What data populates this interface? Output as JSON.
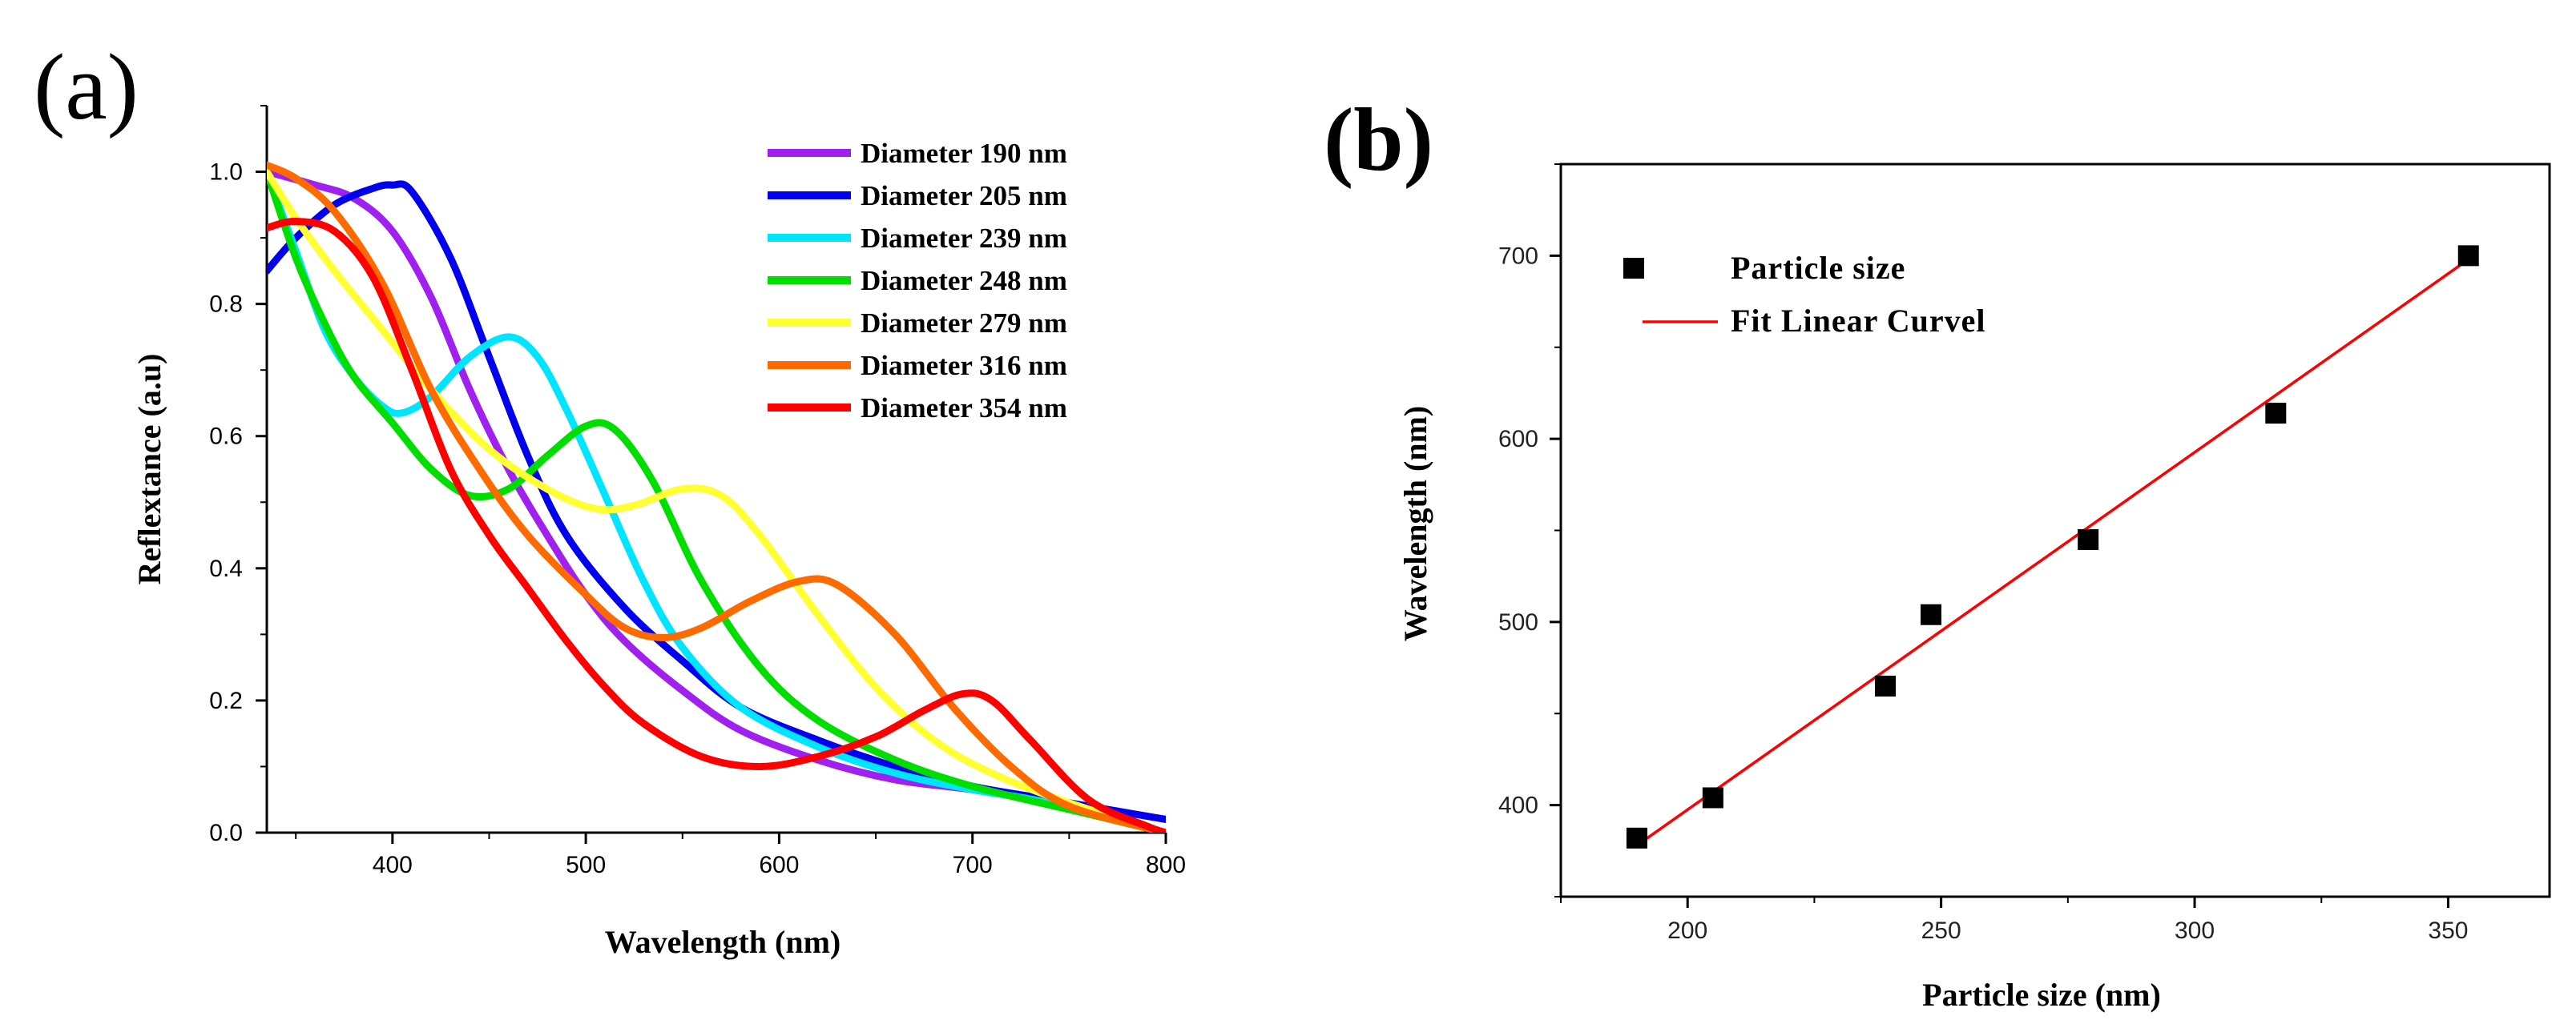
{
  "chart_data": [
    {
      "panel_label": "(a)",
      "type": "line",
      "xlabel": "Wavelength (nm)",
      "ylabel": "Reflextance (a.u)",
      "xlim": [
        335,
        800
      ],
      "ylim": [
        0.0,
        1.1
      ],
      "xticks": [
        400,
        500,
        600,
        700,
        800
      ],
      "xtick_labels": [
        "400",
        "500",
        "600",
        "700",
        "800"
      ],
      "yticks": [
        0.0,
        0.2,
        0.4,
        0.6,
        0.8,
        1.0
      ],
      "ytick_labels": [
        "0.0",
        "0.2",
        "0.4",
        "0.6",
        "0.8",
        "1.0"
      ],
      "legend_position": "top-right",
      "series": [
        {
          "name": "Diameter 190 nm",
          "color": "#a020f0",
          "points": [
            [
              335,
              1.0
            ],
            [
              360,
              0.98
            ],
            [
              380,
              0.96
            ],
            [
              400,
              0.91
            ],
            [
              420,
              0.81
            ],
            [
              440,
              0.67
            ],
            [
              460,
              0.55
            ],
            [
              480,
              0.45
            ],
            [
              500,
              0.36
            ],
            [
              520,
              0.29
            ],
            [
              550,
              0.215
            ],
            [
              580,
              0.155
            ],
            [
              620,
              0.11
            ],
            [
              660,
              0.08
            ],
            [
              700,
              0.065
            ],
            [
              740,
              0.045
            ],
            [
              800,
              0.0
            ]
          ]
        },
        {
          "name": "Diameter 205 nm",
          "color": "#0000ee",
          "points": [
            [
              335,
              0.85
            ],
            [
              350,
              0.9
            ],
            [
              370,
              0.95
            ],
            [
              390,
              0.975
            ],
            [
              400,
              0.98
            ],
            [
              410,
              0.97
            ],
            [
              430,
              0.87
            ],
            [
              450,
              0.72
            ],
            [
              470,
              0.57
            ],
            [
              490,
              0.45
            ],
            [
              520,
              0.34
            ],
            [
              550,
              0.26
            ],
            [
              580,
              0.19
            ],
            [
              620,
              0.14
            ],
            [
              660,
              0.1
            ],
            [
              700,
              0.07
            ],
            [
              740,
              0.05
            ],
            [
              800,
              0.02
            ]
          ]
        },
        {
          "name": "Diameter 239 nm",
          "color": "#00e5ff",
          "points": [
            [
              335,
              1.0
            ],
            [
              350,
              0.88
            ],
            [
              365,
              0.76
            ],
            [
              380,
              0.69
            ],
            [
              395,
              0.645
            ],
            [
              405,
              0.635
            ],
            [
              420,
              0.66
            ],
            [
              440,
              0.72
            ],
            [
              460,
              0.75
            ],
            [
              475,
              0.72
            ],
            [
              490,
              0.64
            ],
            [
              510,
              0.51
            ],
            [
              530,
              0.38
            ],
            [
              550,
              0.28
            ],
            [
              580,
              0.19
            ],
            [
              620,
              0.13
            ],
            [
              660,
              0.09
            ],
            [
              700,
              0.065
            ],
            [
              740,
              0.045
            ],
            [
              800,
              0.0
            ]
          ]
        },
        {
          "name": "Diameter 248 nm",
          "color": "#00dd00",
          "points": [
            [
              335,
              1.0
            ],
            [
              350,
              0.87
            ],
            [
              365,
              0.77
            ],
            [
              380,
              0.69
            ],
            [
              400,
              0.62
            ],
            [
              420,
              0.55
            ],
            [
              440,
              0.51
            ],
            [
              460,
              0.52
            ],
            [
              480,
              0.57
            ],
            [
              500,
              0.615
            ],
            [
              515,
              0.61
            ],
            [
              535,
              0.53
            ],
            [
              560,
              0.38
            ],
            [
              590,
              0.25
            ],
            [
              620,
              0.17
            ],
            [
              660,
              0.11
            ],
            [
              700,
              0.07
            ],
            [
              750,
              0.035
            ],
            [
              800,
              0.0
            ]
          ]
        },
        {
          "name": "Diameter 279 nm",
          "color": "#ffff33",
          "points": [
            [
              335,
              1.0
            ],
            [
              350,
              0.93
            ],
            [
              370,
              0.85
            ],
            [
              395,
              0.76
            ],
            [
              420,
              0.67
            ],
            [
              450,
              0.58
            ],
            [
              480,
              0.52
            ],
            [
              505,
              0.49
            ],
            [
              525,
              0.495
            ],
            [
              550,
              0.52
            ],
            [
              570,
              0.51
            ],
            [
              590,
              0.45
            ],
            [
              620,
              0.33
            ],
            [
              650,
              0.22
            ],
            [
              680,
              0.14
            ],
            [
              710,
              0.09
            ],
            [
              750,
              0.045
            ],
            [
              800,
              0.0
            ]
          ]
        },
        {
          "name": "Diameter 316 nm",
          "color": "#ff6a00",
          "points": [
            [
              335,
              1.01
            ],
            [
              350,
              0.99
            ],
            [
              370,
              0.94
            ],
            [
              395,
              0.83
            ],
            [
              420,
              0.67
            ],
            [
              445,
              0.55
            ],
            [
              470,
              0.45
            ],
            [
              500,
              0.36
            ],
            [
              520,
              0.31
            ],
            [
              540,
              0.295
            ],
            [
              560,
              0.31
            ],
            [
              585,
              0.35
            ],
            [
              610,
              0.38
            ],
            [
              630,
              0.375
            ],
            [
              660,
              0.3
            ],
            [
              690,
              0.19
            ],
            [
              720,
              0.1
            ],
            [
              750,
              0.04
            ],
            [
              800,
              0.0
            ]
          ]
        },
        {
          "name": "Diameter 354 nm",
          "color": "#ff0000",
          "points": [
            [
              335,
              0.915
            ],
            [
              350,
              0.925
            ],
            [
              370,
              0.91
            ],
            [
              390,
              0.84
            ],
            [
              410,
              0.7
            ],
            [
              430,
              0.55
            ],
            [
              450,
              0.45
            ],
            [
              470,
              0.37
            ],
            [
              490,
              0.29
            ],
            [
              510,
              0.22
            ],
            [
              530,
              0.165
            ],
            [
              560,
              0.115
            ],
            [
              590,
              0.1
            ],
            [
              620,
              0.115
            ],
            [
              650,
              0.145
            ],
            [
              675,
              0.185
            ],
            [
              695,
              0.21
            ],
            [
              710,
              0.2
            ],
            [
              730,
              0.14
            ],
            [
              760,
              0.05
            ],
            [
              790,
              0.01
            ],
            [
              800,
              0.0
            ]
          ]
        }
      ]
    },
    {
      "panel_label": "(b)",
      "type": "scatter",
      "xlabel": "Particle size (nm)",
      "ylabel": "Wavelength (nm)",
      "xlim": [
        175,
        370
      ],
      "ylim": [
        350,
        750
      ],
      "xticks": [
        200,
        250,
        300,
        350
      ],
      "xtick_labels": [
        "200",
        "250",
        "300",
        "350"
      ],
      "yticks": [
        400,
        500,
        600,
        700
      ],
      "ytick_labels": [
        "400",
        "500",
        "600",
        "700"
      ],
      "legend_position": "top-left",
      "series": [
        {
          "name": "Particle size",
          "kind": "scatter",
          "color": "#000000",
          "x": [
            190,
            205,
            239,
            248,
            279,
            316,
            354
          ],
          "y": [
            382,
            404,
            465,
            504,
            545,
            614,
            700
          ]
        },
        {
          "name": "Fit Linear Curvel",
          "kind": "line",
          "color": "#ff0000",
          "x": [
            190,
            354
          ],
          "y": [
            378,
            698
          ]
        }
      ]
    }
  ]
}
